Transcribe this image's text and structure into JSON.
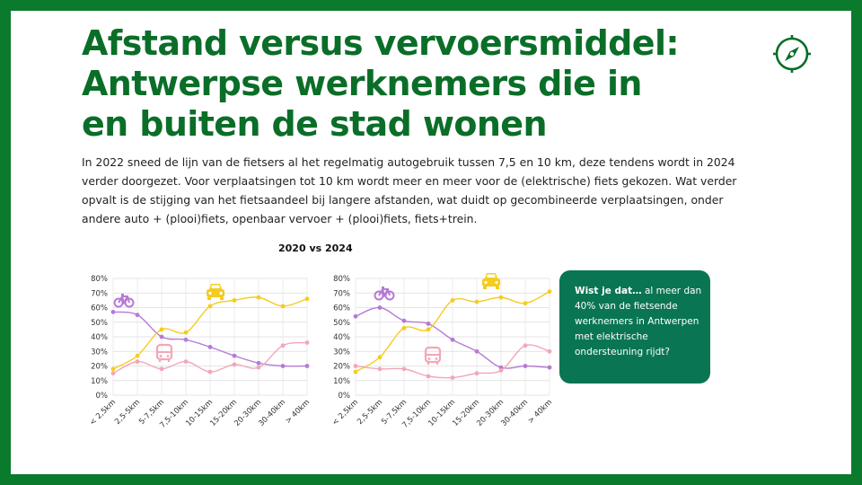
{
  "title_lines": [
    "Afstand versus vervoersmiddel:",
    "Antwerpse werknemers die in",
    "en buiten de stad wonen"
  ],
  "body_lines": [
    "In 2022 sneed de lijn van de fietsers al het regelmatig autogebruik tussen 7,5 en 10 km, deze tendens wordt in 2024",
    "verder doorgezet. Voor verplaatsingen tot 10 km wordt meer en meer voor de (elektrische) fiets gekozen. Wat verder",
    "opvalt is de stijging van het fietsaandeel bij langere afstanden, wat duidt op gecombineerde verplaatsingen, onder",
    "andere auto + (plooi)fiets, openbaar vervoer + (plooi)fiets, fiets+trein."
  ],
  "charts_title": "2020 vs 2024",
  "callout": {
    "lead": "Wist je dat…",
    "line1_rest": " al meer dan",
    "lines": [
      "40% van de fietsende",
      "werknemers in Antwerpen",
      "met elektrische",
      "ondersteuning rijdt?"
    ]
  },
  "colors": {
    "frame": "#0a7a2c",
    "title": "#0a6e28",
    "bike": "#b57ad6",
    "car": "#f5cc1f",
    "public_transport": "#f2a7b8",
    "callout": "#0a7552"
  },
  "icons": [
    "compass-icon",
    "bike-icon",
    "car-icon",
    "bus-icon"
  ],
  "chart_data": [
    {
      "type": "line",
      "categories": [
        "< 2,5km",
        "2,5-5km",
        "5-7,5km",
        "7,5-10km",
        "10-15km",
        "15-20km",
        "20-30km",
        "30-40km",
        "> 40km"
      ],
      "yticks": [
        "0%",
        "10%",
        "20%",
        "30%",
        "40%",
        "50%",
        "60%",
        "70%",
        "80%"
      ],
      "ylim": [
        0,
        80
      ],
      "grid": true,
      "series": [
        {
          "icon": "bike-icon",
          "color": "#b57ad6",
          "values": [
            57,
            55,
            40,
            38,
            33,
            27,
            22,
            20,
            20
          ]
        },
        {
          "icon": "car-icon",
          "color": "#f5cc1f",
          "values": [
            18,
            27,
            45,
            43,
            61,
            65,
            67,
            61,
            66
          ]
        },
        {
          "icon": "bus-icon",
          "color": "#f2a7b8",
          "values": [
            15,
            23,
            18,
            23,
            16,
            21,
            19,
            34,
            36
          ]
        }
      ]
    },
    {
      "type": "line",
      "categories": [
        "< 2,5km",
        "2,5-5km",
        "5-7,5km",
        "7,5-10km",
        "10-15km",
        "15-20km",
        "20-30km",
        "30-40km",
        "> 40km"
      ],
      "yticks": [
        "0%",
        "10%",
        "20%",
        "30%",
        "40%",
        "50%",
        "60%",
        "70%",
        "80%"
      ],
      "ylim": [
        0,
        80
      ],
      "grid": true,
      "series": [
        {
          "icon": "bike-icon",
          "color": "#b57ad6",
          "values": [
            54,
            60,
            51,
            49,
            38,
            30,
            19,
            20,
            19
          ]
        },
        {
          "icon": "car-icon",
          "color": "#f5cc1f",
          "values": [
            16,
            26,
            46,
            45,
            65,
            64,
            67,
            63,
            71
          ]
        },
        {
          "icon": "bus-icon",
          "color": "#f2a7b8",
          "values": [
            20,
            18,
            18,
            13,
            12,
            15,
            17,
            34,
            30
          ]
        }
      ]
    }
  ]
}
